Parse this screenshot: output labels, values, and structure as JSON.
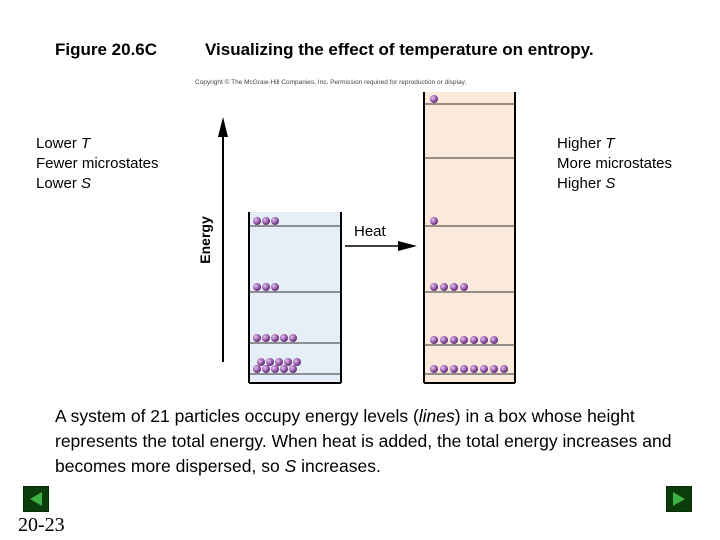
{
  "header": {
    "figure_number": "Figure 20.6C",
    "title": "Visualizing the effect of temperature on entropy.",
    "copyright": "Copyright © The McGraw-Hill Companies, Inc. Permission required for reproduction or display."
  },
  "left_panel": {
    "lines": [
      {
        "text": "Lower ",
        "var": "T"
      },
      {
        "text": "Fewer microstates",
        "var": ""
      },
      {
        "text": "Lower ",
        "var": "S"
      }
    ]
  },
  "right_panel": {
    "lines": [
      {
        "text": "Higher ",
        "var": "T"
      },
      {
        "text": "More microstates",
        "var": ""
      },
      {
        "text": "Higher ",
        "var": "S"
      }
    ]
  },
  "diagram": {
    "axis_label": "Energy",
    "heat_label": "Heat",
    "particle_count": 21,
    "low_box": {
      "fill": "#e6eef8",
      "levels_from_bottom": [
        10,
        5,
        3,
        3
      ]
    },
    "high_box": {
      "fill": "#fbeadb",
      "levels_from_bottom": [
        8,
        7,
        4,
        1,
        1
      ]
    },
    "particle_color": "#9b5fb0"
  },
  "caption": {
    "part1": "A system of 21 particles occupy energy levels (",
    "italic": "lines",
    "part2": ") in a box whose height represents the total energy. When heat is added, the total energy increases and becomes more dispersed, so ",
    "var": "S",
    "part3": " increases."
  },
  "footer": {
    "slide_number": "20-23"
  },
  "colors": {
    "nav_button": "#0a3d0a",
    "nav_arrow": "#3cb043"
  }
}
